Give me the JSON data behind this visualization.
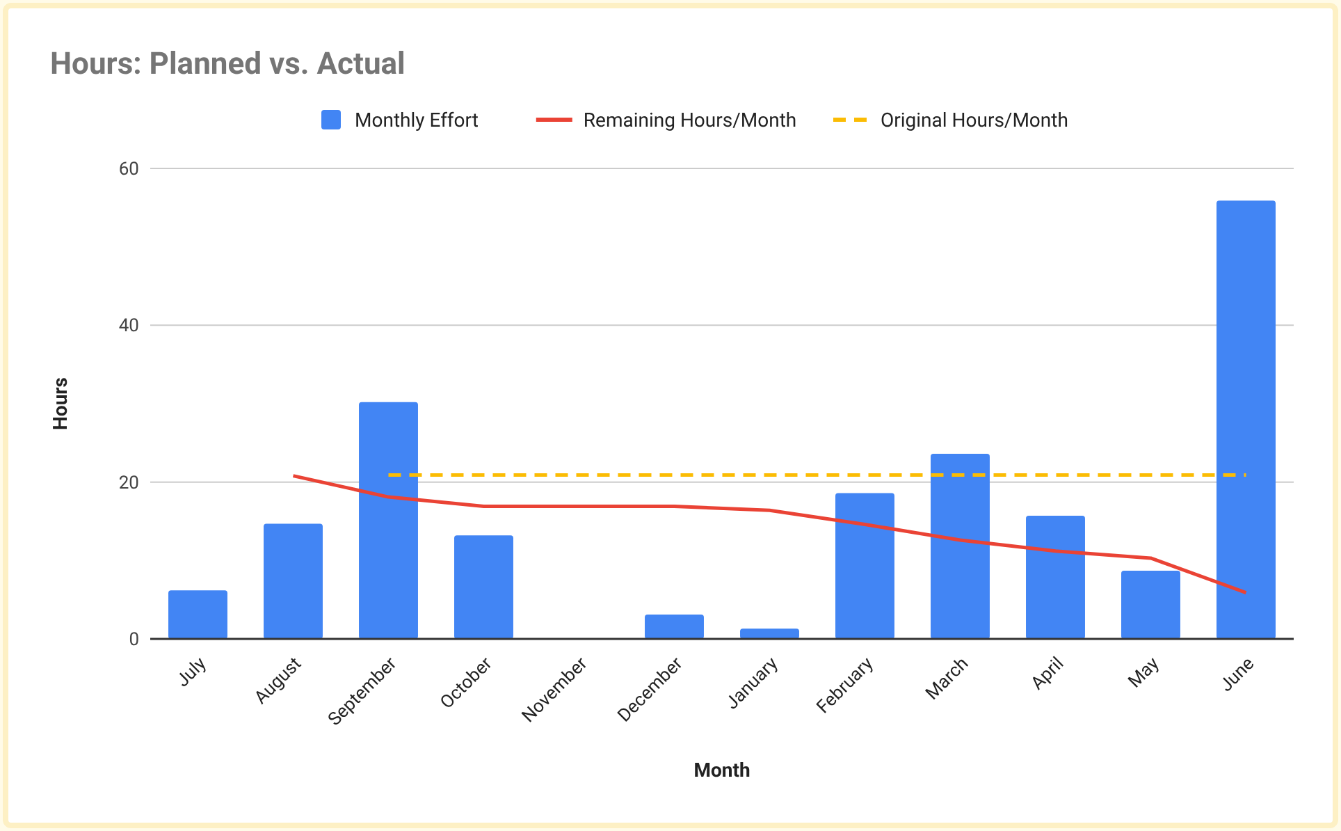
{
  "chart_data": {
    "type": "bar",
    "title": "Hours: Planned vs. Actual",
    "xlabel": "Month",
    "ylabel": "Hours",
    "categories": [
      "July",
      "August",
      "September",
      "October",
      "November",
      "December",
      "January",
      "February",
      "March",
      "April",
      "May",
      "June"
    ],
    "series": [
      {
        "name": "Monthly Effort",
        "color": "#4285f4",
        "values": [
          6.2,
          14.7,
          30.2,
          13.2,
          0,
          3.1,
          1.3,
          18.6,
          23.6,
          15.7,
          8.7,
          55.9
        ]
      },
      {
        "name": "Remaining Hours/Month",
        "type": "line",
        "color": "#ea4335",
        "line_style": "solid",
        "values": [
          null,
          20.8,
          18.1,
          16.9,
          16.9,
          16.9,
          16.4,
          14.6,
          12.6,
          11.2,
          10.3,
          5.9
        ]
      },
      {
        "name": "Original Hours/Month",
        "type": "line",
        "color": "#fbbc04",
        "line_style": "dashed",
        "values": [
          null,
          null,
          20.9,
          20.9,
          20.9,
          20.9,
          20.9,
          20.9,
          20.9,
          20.9,
          20.9,
          20.9
        ]
      }
    ],
    "ylim": [
      0,
      60
    ],
    "yticks": [
      0,
      20,
      40,
      60
    ],
    "grid": "y",
    "legend": "top"
  }
}
